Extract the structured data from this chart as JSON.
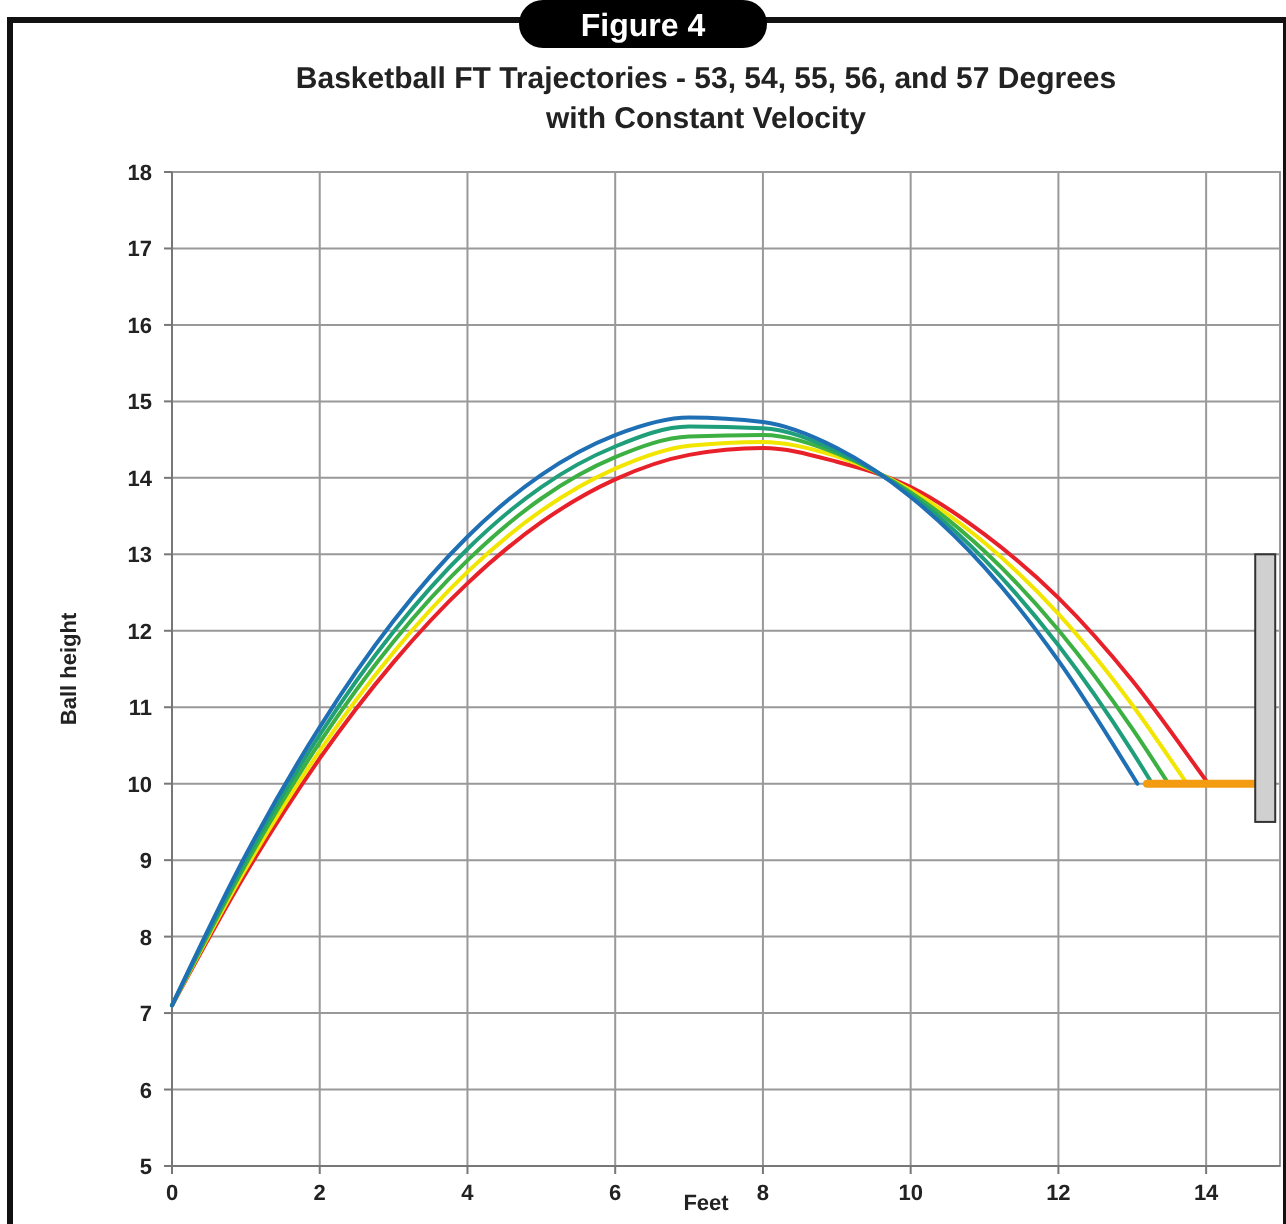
{
  "chart_data": {
    "type": "line",
    "title": "Basketball FT Trajectories - 53, 54, 55, 56, and 57 Degrees\nwith Constant Velocity",
    "xlabel": "Feet",
    "ylabel": "Ball height",
    "annotations": [
      "Figure 4"
    ],
    "xlim": [
      0,
      15
    ],
    "ylim": [
      5,
      18
    ],
    "xticks": [
      0,
      2,
      4,
      6,
      8,
      10,
      12,
      14
    ],
    "yticks": [
      5,
      6,
      7,
      8,
      9,
      10,
      11,
      12,
      13,
      14,
      15,
      16,
      17,
      18
    ],
    "grid": true,
    "marker": "none",
    "line_style": "solid",
    "series": [
      {
        "color": "#e8202a",
        "x": [
          0,
          1,
          2,
          3,
          4,
          5,
          6,
          7,
          8,
          9,
          10,
          11,
          12,
          13,
          14,
          14.03
        ],
        "values": [
          7.1,
          8.83,
          10.33,
          11.59,
          12.62,
          13.42,
          13.98,
          14.3,
          14.39,
          14.21,
          13.88,
          13.26,
          12.43,
          11.35,
          10.04,
          10
        ]
      },
      {
        "color": "#f2e600",
        "x": [
          0,
          1,
          2,
          3,
          4,
          5,
          6,
          7,
          8,
          9,
          10,
          11,
          12,
          13,
          13.74
        ],
        "values": [
          7.1,
          8.89,
          10.43,
          11.72,
          12.77,
          13.57,
          14.12,
          14.42,
          14.47,
          14.28,
          13.84,
          13.15,
          12.22,
          11.03,
          10
        ]
      },
      {
        "color": "#3cb043",
        "x": [
          0,
          1,
          2,
          3,
          4,
          5,
          6,
          7,
          8,
          9,
          10,
          11,
          12,
          13,
          13.49
        ],
        "values": [
          7.1,
          8.95,
          10.54,
          11.86,
          12.92,
          13.73,
          14.27,
          14.54,
          14.56,
          14.32,
          13.81,
          13.04,
          12.01,
          10.72,
          10
        ]
      },
      {
        "color": "#1f9e7a",
        "x": [
          0,
          1,
          2,
          3,
          4,
          5,
          6,
          7,
          8,
          9,
          10,
          11,
          12,
          13,
          13.27
        ],
        "values": [
          7.1,
          9.01,
          10.64,
          11.99,
          13.07,
          13.88,
          14.41,
          14.67,
          14.65,
          14.35,
          13.78,
          12.93,
          11.81,
          10.42,
          10
        ]
      },
      {
        "color": "#1f6fb4",
        "x": [
          0,
          1,
          2,
          3,
          4,
          5,
          6,
          7,
          8,
          9,
          10,
          11,
          12,
          13,
          13.07
        ],
        "values": [
          7.1,
          9.07,
          10.74,
          12.13,
          13.23,
          14.04,
          14.56,
          14.79,
          14.73,
          14.39,
          13.75,
          12.83,
          11.61,
          10.11,
          10
        ]
      },
      {
        "color": "#f39c12",
        "x": [
          13.2,
          14.75
        ],
        "values": [
          10,
          10
        ]
      },
      {
        "type": "bar",
        "color": "#d0d0d0",
        "x": [
          14.8
        ],
        "base": [
          9.5
        ],
        "values": [
          3.5
        ]
      }
    ]
  }
}
